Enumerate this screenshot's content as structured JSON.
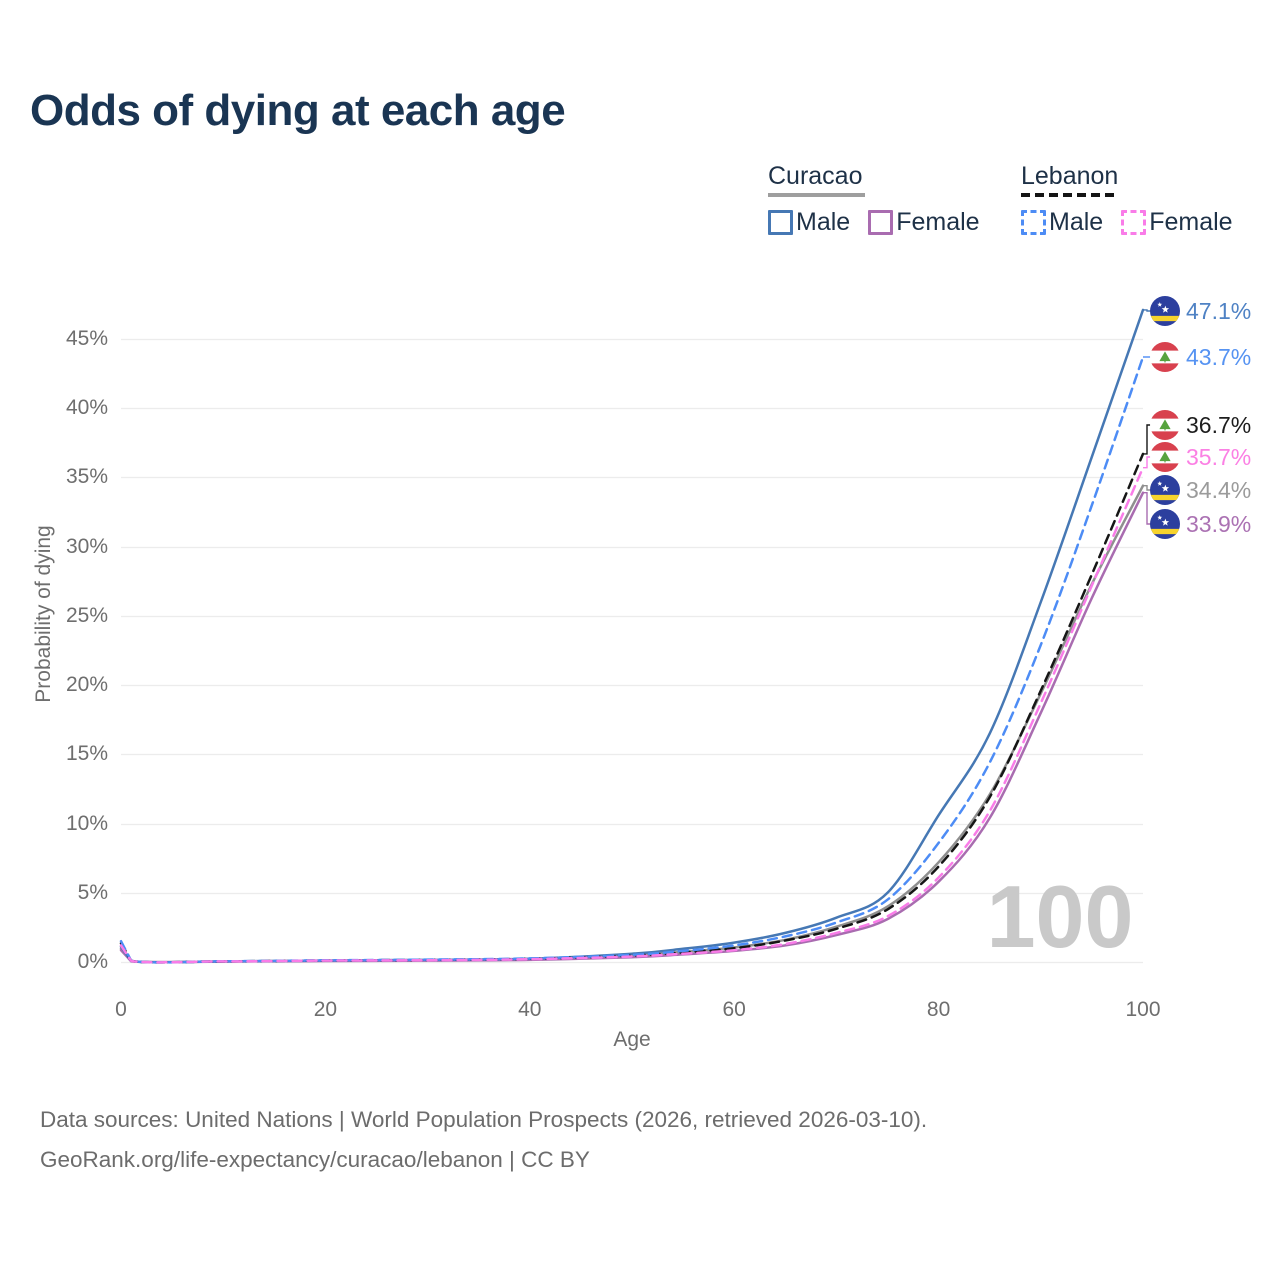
{
  "title": "Odds of dying at each age",
  "legend": {
    "groups": [
      {
        "name": "Curacao",
        "line_style": "solid",
        "underline_color": "#9e9e9e",
        "items": [
          {
            "label": "Male",
            "color": "#4678b4"
          },
          {
            "label": "Female",
            "color": "#a96cb0"
          }
        ]
      },
      {
        "name": "Lebanon",
        "line_style": "dashed",
        "underline_color": "#141414",
        "items": [
          {
            "label": "Male",
            "color": "#4d8cf5"
          },
          {
            "label": "Female",
            "color": "#f97ce8"
          }
        ]
      }
    ]
  },
  "watermark": "100",
  "chart_data": {
    "type": "line",
    "title": "Odds of dying at each age",
    "xlabel": "Age",
    "ylabel": "Probability of dying",
    "xlim": [
      0,
      100
    ],
    "ylim": [
      0,
      48
    ],
    "grid": "horizontal",
    "x_ticks": [
      0,
      20,
      40,
      60,
      80,
      100
    ],
    "y_ticks": [
      0,
      5,
      10,
      15,
      20,
      25,
      30,
      35,
      40,
      45
    ],
    "y_tick_labels": [
      "0%",
      "5%",
      "10%",
      "15%",
      "20%",
      "25%",
      "30%",
      "35%",
      "40%",
      "45%"
    ],
    "legend_position": "top-right",
    "x": [
      0,
      1,
      10,
      20,
      30,
      40,
      50,
      55,
      60,
      65,
      70,
      75,
      80,
      85,
      90,
      95,
      100
    ],
    "series": [
      {
        "name": "Curacao Male",
        "country": "Curacao",
        "sex": "Male",
        "color": "#4678b4",
        "dashed": false,
        "flag": "curacao",
        "end_label": "47.1%",
        "end_value": 47.1,
        "label_color": "#4f82c4",
        "values": [
          1.1,
          0.07,
          0.04,
          0.11,
          0.15,
          0.24,
          0.6,
          0.95,
          1.4,
          2.1,
          3.2,
          5.0,
          10.6,
          16.5,
          26.0,
          36.5,
          47.1
        ]
      },
      {
        "name": "Lebanon Male",
        "country": "Lebanon",
        "sex": "Male",
        "color": "#4d8cf5",
        "dashed": true,
        "flag": "lebanon",
        "end_label": "43.7%",
        "end_value": 43.7,
        "label_color": "#5693f2",
        "values": [
          1.5,
          0.09,
          0.05,
          0.12,
          0.17,
          0.26,
          0.52,
          0.8,
          1.2,
          1.85,
          2.85,
          4.5,
          8.6,
          14.4,
          22.9,
          33.0,
          43.7
        ]
      },
      {
        "name": "Lebanon Both sexes",
        "country": "Lebanon",
        "sex": "Both",
        "color": "#161616",
        "dashed": true,
        "flag": "lebanon",
        "end_label": "36.7%",
        "end_value": 36.7,
        "label_color": "#1d1d1d",
        "values": [
          1.35,
          0.08,
          0.045,
          0.11,
          0.15,
          0.23,
          0.46,
          0.7,
          1.0,
          1.55,
          2.4,
          3.8,
          6.9,
          11.9,
          19.6,
          28.0,
          36.7
        ]
      },
      {
        "name": "Lebanon Female",
        "country": "Lebanon",
        "sex": "Female",
        "color": "#f97ce8",
        "dashed": true,
        "flag": "lebanon",
        "end_label": "35.7%",
        "end_value": 35.7,
        "label_color": "#fb80e4",
        "values": [
          1.2,
          0.07,
          0.04,
          0.1,
          0.13,
          0.2,
          0.4,
          0.6,
          0.85,
          1.3,
          2.1,
          3.3,
          6.1,
          10.9,
          18.7,
          27.2,
          35.7
        ]
      },
      {
        "name": "Curacao Both sexes",
        "country": "Curacao",
        "sex": "Both",
        "color": "#8f8f8f",
        "dashed": false,
        "flag": "curacao",
        "end_label": "34.4%",
        "end_value": 34.4,
        "label_color": "#9b9b9b",
        "values": [
          0.95,
          0.06,
          0.035,
          0.09,
          0.12,
          0.19,
          0.47,
          0.73,
          1.05,
          1.6,
          2.55,
          4.0,
          7.2,
          12.1,
          19.4,
          27.3,
          34.4
        ]
      },
      {
        "name": "Curacao Female",
        "country": "Curacao",
        "sex": "Female",
        "color": "#a96cb0",
        "dashed": false,
        "flag": "curacao",
        "end_label": "33.9%",
        "end_value": 33.9,
        "label_color": "#ab72b3",
        "values": [
          0.85,
          0.05,
          0.03,
          0.07,
          0.1,
          0.15,
          0.35,
          0.55,
          0.8,
          1.2,
          1.95,
          3.1,
          5.8,
          10.4,
          18.0,
          26.3,
          33.9
        ]
      }
    ]
  },
  "footer": {
    "line1": "Data sources: United Nations | World Population Prospects (2026, retrieved 2026-03-10).",
    "line2": "GeoRank.org/life-expectancy/curacao/lebanon | CC BY"
  }
}
